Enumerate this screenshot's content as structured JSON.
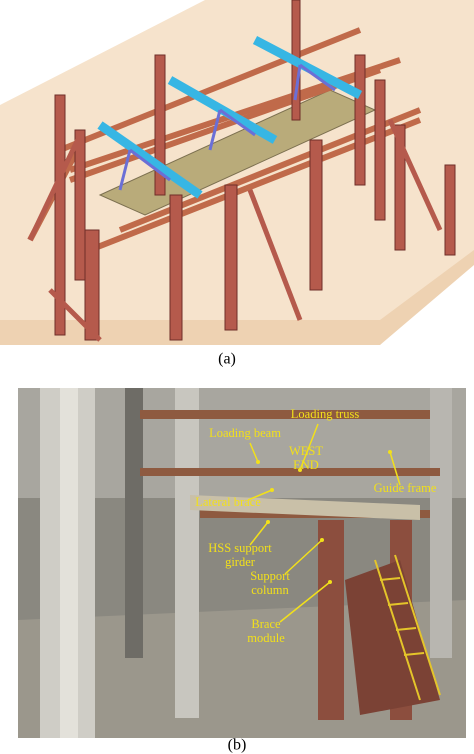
{
  "figures": [
    {
      "caption": "(a)"
    },
    {
      "caption": "(b)",
      "annotations": [
        {
          "lines": [
            "Loading truss"
          ]
        },
        {
          "lines": [
            "Loading beam"
          ]
        },
        {
          "lines": [
            "WEST",
            "END"
          ]
        },
        {
          "lines": [
            "Guide frame"
          ]
        },
        {
          "lines": [
            "Lateral brace"
          ]
        },
        {
          "lines": [
            "HSS support",
            "girder"
          ]
        },
        {
          "lines": [
            "Support",
            "column"
          ]
        },
        {
          "lines": [
            "Brace",
            "module"
          ]
        }
      ]
    }
  ]
}
